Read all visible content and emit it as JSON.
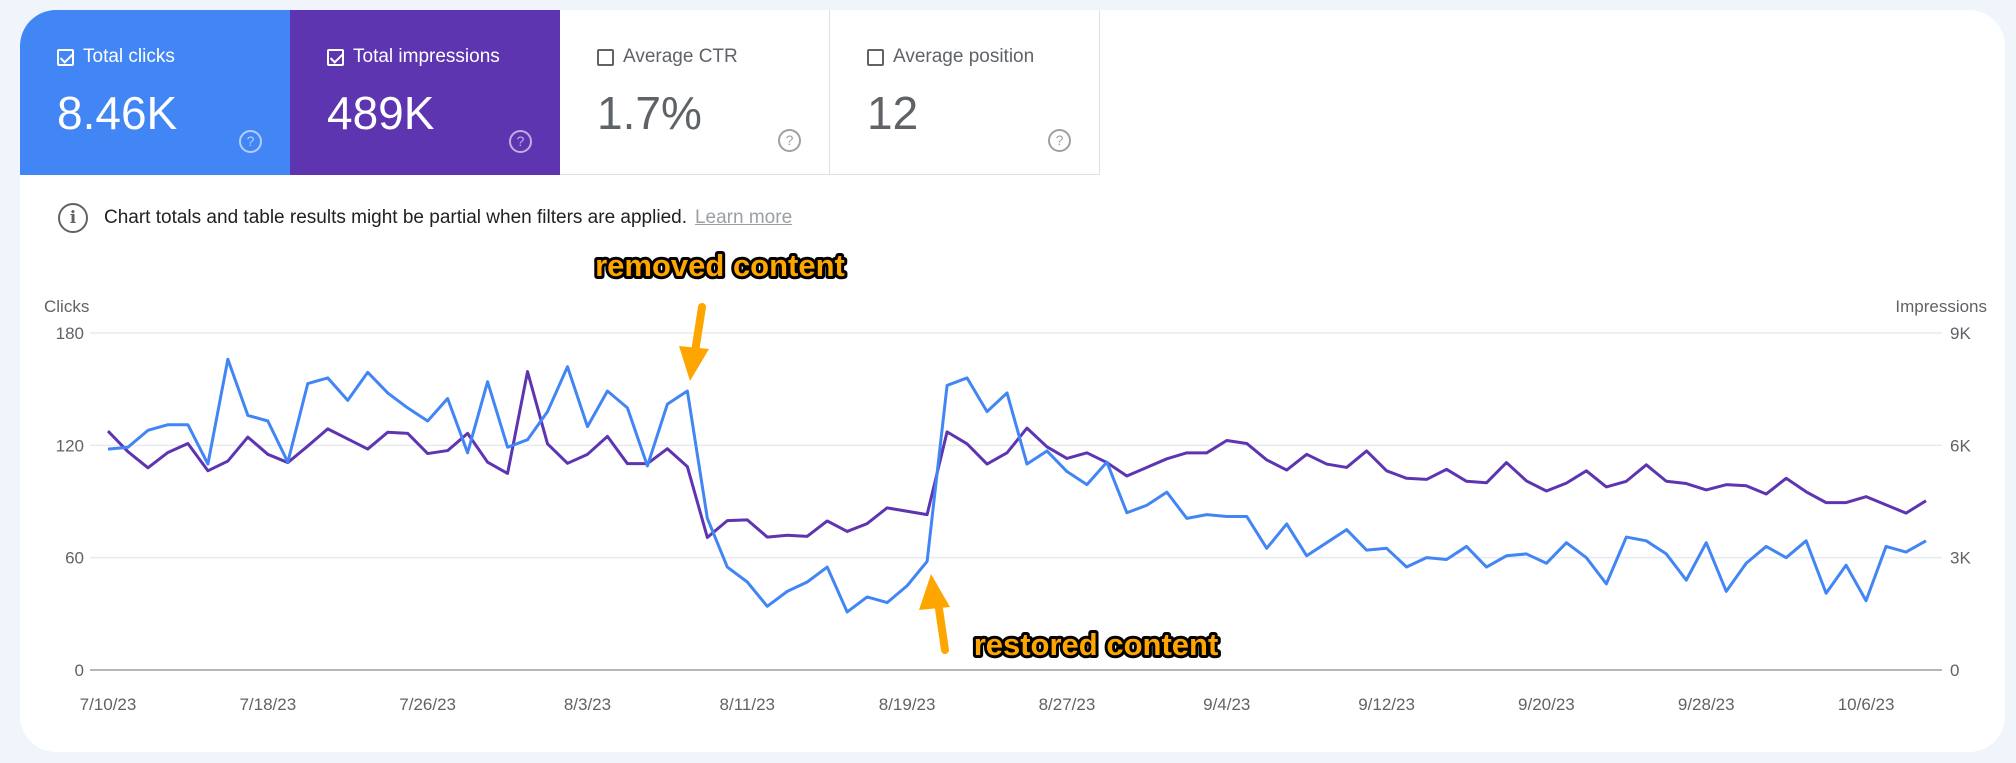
{
  "metrics": [
    {
      "label": "Total clicks",
      "value": "8.46K",
      "checked": true,
      "color": "#4285f4"
    },
    {
      "label": "Total impressions",
      "value": "489K",
      "checked": true,
      "color": "#5e35b1"
    },
    {
      "label": "Average CTR",
      "value": "1.7%",
      "checked": false
    },
    {
      "label": "Average position",
      "value": "12",
      "checked": false
    }
  ],
  "info": {
    "text": "Chart totals and table results might be partial when filters are applied.",
    "link": "Learn more"
  },
  "annotations": {
    "removed": "removed content",
    "restored": "restored content",
    "arrow_color": "#ffa500"
  },
  "chart_data": {
    "type": "line",
    "left_axis": {
      "label": "Clicks",
      "ylim": [
        0,
        180
      ],
      "ticks": [
        "0",
        "60",
        "120",
        "180"
      ]
    },
    "right_axis": {
      "label": "Impressions",
      "ylim": [
        0,
        9000
      ],
      "ticks": [
        "0",
        "3K",
        "6K",
        "9K"
      ]
    },
    "x_ticks": [
      "7/10/23",
      "7/18/23",
      "7/26/23",
      "8/3/23",
      "8/11/23",
      "8/19/23",
      "8/27/23",
      "9/4/23",
      "9/12/23",
      "9/20/23",
      "9/28/23",
      "10/6/23"
    ],
    "grid": true,
    "x": [
      "7/10/23",
      "7/11/23",
      "7/12/23",
      "7/13/23",
      "7/14/23",
      "7/15/23",
      "7/16/23",
      "7/17/23",
      "7/18/23",
      "7/19/23",
      "7/20/23",
      "7/21/23",
      "7/22/23",
      "7/23/23",
      "7/24/23",
      "7/25/23",
      "7/26/23",
      "7/27/23",
      "7/28/23",
      "7/29/23",
      "7/30/23",
      "7/31/23",
      "8/1/23",
      "8/2/23",
      "8/3/23",
      "8/4/23",
      "8/5/23",
      "8/6/23",
      "8/7/23",
      "8/8/23",
      "8/9/23",
      "8/10/23",
      "8/11/23",
      "8/12/23",
      "8/13/23",
      "8/14/23",
      "8/15/23",
      "8/16/23",
      "8/17/23",
      "8/18/23",
      "8/19/23",
      "8/20/23",
      "8/21/23",
      "8/22/23",
      "8/23/23",
      "8/24/23",
      "8/25/23",
      "8/26/23",
      "8/27/23",
      "8/28/23",
      "8/29/23",
      "8/30/23",
      "8/31/23",
      "9/1/23",
      "9/2/23",
      "9/3/23",
      "9/4/23",
      "9/5/23",
      "9/6/23",
      "9/7/23",
      "9/8/23",
      "9/9/23",
      "9/10/23",
      "9/11/23",
      "9/12/23",
      "9/13/23",
      "9/14/23",
      "9/15/23",
      "9/16/23",
      "9/17/23",
      "9/18/23",
      "9/19/23",
      "9/20/23",
      "9/21/23",
      "9/22/23",
      "9/23/23",
      "9/24/23",
      "9/25/23",
      "9/26/23",
      "9/27/23",
      "9/28/23",
      "9/29/23",
      "9/30/23",
      "10/1/23",
      "10/2/23",
      "10/3/23",
      "10/4/23",
      "10/5/23",
      "10/6/23",
      "10/7/23",
      "10/8/23",
      "10/9/23"
    ],
    "series": [
      {
        "name": "Clicks",
        "axis": "left",
        "color": "#4285f4",
        "values": [
          118,
          119,
          128,
          131,
          131,
          110,
          166,
          136,
          133,
          111,
          153,
          156,
          144,
          159,
          148,
          140,
          133,
          145,
          116,
          154,
          119,
          123,
          138,
          162,
          130,
          149,
          140,
          109,
          142,
          149,
          81,
          55,
          47,
          34,
          42,
          47,
          55,
          31,
          39,
          36,
          45,
          58,
          152,
          156,
          138,
          148,
          110,
          117,
          106,
          99,
          111,
          84,
          88,
          95,
          81,
          83,
          82,
          82,
          65,
          78,
          61,
          68,
          75,
          64,
          65,
          55,
          60,
          59,
          66,
          55,
          61,
          62,
          57,
          68,
          60,
          46,
          71,
          69,
          62,
          48,
          68,
          42,
          57,
          66,
          60,
          69,
          41,
          56,
          37,
          66,
          63,
          69
        ]
      },
      {
        "name": "Impressions",
        "axis": "right",
        "color": "#5e35b1",
        "values": [
          6380,
          5830,
          5400,
          5810,
          6050,
          5320,
          5580,
          6220,
          5760,
          5540,
          5980,
          6440,
          6170,
          5900,
          6350,
          6320,
          5780,
          5860,
          6320,
          5550,
          5250,
          7970,
          6040,
          5520,
          5760,
          6240,
          5510,
          5510,
          5910,
          5430,
          3540,
          3990,
          4010,
          3550,
          3600,
          3570,
          3980,
          3700,
          3910,
          4330,
          4240,
          4150,
          6360,
          6040,
          5500,
          5800,
          6460,
          5960,
          5650,
          5800,
          5540,
          5180,
          5410,
          5640,
          5800,
          5800,
          6130,
          6050,
          5610,
          5340,
          5760,
          5500,
          5410,
          5850,
          5320,
          5120,
          5090,
          5360,
          5040,
          5000,
          5540,
          5050,
          4780,
          4990,
          5320,
          4890,
          5040,
          5480,
          5040,
          4980,
          4810,
          4950,
          4920,
          4700,
          5120,
          4760,
          4470,
          4470,
          4630,
          4410,
          4190,
          4520
        ]
      }
    ]
  }
}
